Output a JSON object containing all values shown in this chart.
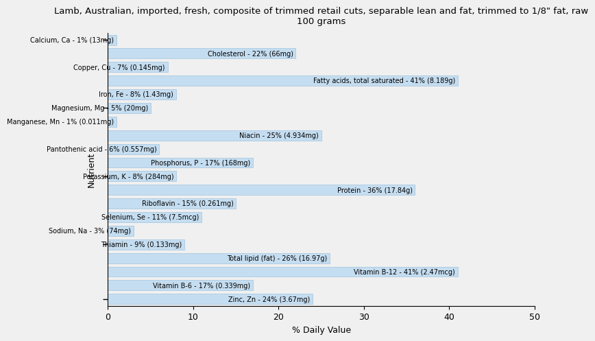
{
  "title": "Lamb, Australian, imported, fresh, composite of trimmed retail cuts, separable lean and fat, trimmed to 1/8\" fat, raw\n100 grams",
  "xlabel": "% Daily Value",
  "ylabel": "Nutrient",
  "xlim": [
    0,
    50
  ],
  "background_color": "#f0f0f0",
  "bar_color": "#c5ddf0",
  "bar_edge_color": "#a0c4e0",
  "nutrients": [
    "Calcium, Ca - 1% (13mg)",
    "Cholesterol - 22% (66mg)",
    "Copper, Cu - 7% (0.145mg)",
    "Fatty acids, total saturated - 41% (8.189g)",
    "Iron, Fe - 8% (1.43mg)",
    "Magnesium, Mg - 5% (20mg)",
    "Manganese, Mn - 1% (0.011mg)",
    "Niacin - 25% (4.934mg)",
    "Pantothenic acid - 6% (0.557mg)",
    "Phosphorus, P - 17% (168mg)",
    "Potassium, K - 8% (284mg)",
    "Protein - 36% (17.84g)",
    "Riboflavin - 15% (0.261mg)",
    "Selenium, Se - 11% (7.5mcg)",
    "Sodium, Na - 3% (74mg)",
    "Thiamin - 9% (0.133mg)",
    "Total lipid (fat) - 26% (16.97g)",
    "Vitamin B-12 - 41% (2.47mcg)",
    "Vitamin B-6 - 17% (0.339mg)",
    "Zinc, Zn - 24% (3.67mg)"
  ],
  "values": [
    1,
    22,
    7,
    41,
    8,
    5,
    1,
    25,
    6,
    17,
    8,
    36,
    15,
    11,
    3,
    9,
    26,
    41,
    17,
    24
  ],
  "ytick_positions_from_top": [
    0,
    5,
    10,
    15,
    19
  ],
  "label_fontsize": 7,
  "title_fontsize": 9.5,
  "axis_label_fontsize": 9
}
